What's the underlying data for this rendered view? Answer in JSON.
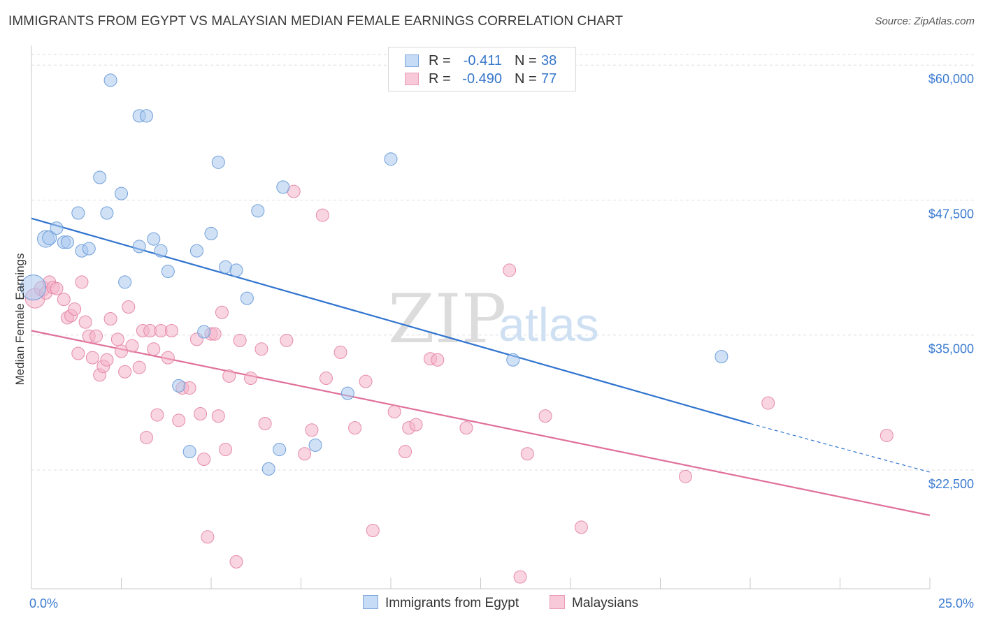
{
  "title": "IMMIGRANTS FROM EGYPT VS MALAYSIAN MEDIAN FEMALE EARNINGS CORRELATION CHART",
  "source": "Source: ZipAtlas.com",
  "watermark": {
    "zip": "ZIP",
    "atlas": "atlas"
  },
  "legend": {
    "rows": [
      {
        "r_label": "R =",
        "r_value": "-0.411",
        "n_label": "N =",
        "n_value": "38",
        "color": "#a9c8ef"
      },
      {
        "r_label": "R =",
        "r_value": "-0.490",
        "n_label": "N =",
        "n_value": "77",
        "color": "#f4b3c8"
      }
    ]
  },
  "bottom_legend": [
    {
      "label": "Immigrants from Egypt",
      "color": "#a9c8ef"
    },
    {
      "label": "Malaysians",
      "color": "#f4b3c8"
    }
  ],
  "chart_data": {
    "type": "scatter",
    "title": "IMMIGRANTS FROM EGYPT VS MALAYSIAN MEDIAN FEMALE EARNINGS CORRELATION CHART",
    "xlabel": "",
    "ylabel": "Median Female Earnings",
    "xlim": [
      0,
      25
    ],
    "ylim": [
      11500,
      61500
    ],
    "x_tick_labels": [
      "0.0%",
      "25.0%"
    ],
    "y_ticks": [
      22500,
      35000,
      47500,
      60000
    ],
    "y_tick_labels": [
      "$22,500",
      "$35,000",
      "$47,500",
      "$60,000"
    ],
    "grid": true,
    "legend_position": "top-center",
    "series": [
      {
        "name": "Immigrants from Egypt",
        "color": "#a9c8ef",
        "stroke": "#6f9fdb",
        "line_color": "#2f74cf",
        "trend": {
          "x0": 0,
          "y0": 45800,
          "x1": 20,
          "y1": 26800,
          "dash_to_x": 25,
          "dash_to_y": 22300
        },
        "points": [
          [
            0.05,
            39400,
            18
          ],
          [
            0.4,
            43900,
            12
          ],
          [
            0.5,
            44000,
            10
          ],
          [
            0.7,
            44900,
            9
          ],
          [
            0.9,
            43600,
            9
          ],
          [
            1.0,
            43600,
            9
          ],
          [
            1.3,
            46300,
            9
          ],
          [
            1.4,
            42800,
            9
          ],
          [
            1.6,
            43000,
            9
          ],
          [
            1.9,
            49600,
            9
          ],
          [
            2.1,
            46300,
            9
          ],
          [
            2.2,
            58600,
            9
          ],
          [
            2.5,
            48100,
            9
          ],
          [
            2.6,
            39900,
            9
          ],
          [
            3.0,
            43200,
            9
          ],
          [
            3.0,
            55300,
            9
          ],
          [
            3.2,
            55300,
            9
          ],
          [
            3.4,
            43900,
            9
          ],
          [
            3.6,
            42800,
            9
          ],
          [
            3.8,
            40900,
            9
          ],
          [
            4.1,
            30300,
            9
          ],
          [
            4.4,
            24200,
            9
          ],
          [
            4.6,
            42800,
            9
          ],
          [
            4.8,
            35300,
            9
          ],
          [
            5.0,
            44400,
            9
          ],
          [
            5.2,
            51000,
            9
          ],
          [
            5.4,
            41300,
            9
          ],
          [
            5.7,
            41000,
            9
          ],
          [
            6.0,
            38400,
            9
          ],
          [
            6.3,
            46500,
            9
          ],
          [
            6.6,
            22600,
            9
          ],
          [
            6.9,
            24400,
            9
          ],
          [
            7.0,
            48700,
            9
          ],
          [
            7.9,
            24800,
            9
          ],
          [
            8.8,
            29600,
            9
          ],
          [
            10.0,
            51300,
            9
          ],
          [
            13.4,
            32700,
            9
          ],
          [
            19.2,
            33000,
            9
          ]
        ]
      },
      {
        "name": "Malaysians",
        "color": "#f4b3c8",
        "stroke": "#e58aa9",
        "line_color": "#e0709a",
        "trend": {
          "x0": 0,
          "y0": 35400,
          "x1": 25,
          "y1": 18300
        },
        "points": [
          [
            0.1,
            38400,
            14
          ],
          [
            0.3,
            39300,
            11
          ],
          [
            0.4,
            38900,
            9
          ],
          [
            0.5,
            39900,
            9
          ],
          [
            0.6,
            39400,
            9
          ],
          [
            0.7,
            39300,
            9
          ],
          [
            0.9,
            38300,
            9
          ],
          [
            1.0,
            36600,
            9
          ],
          [
            1.1,
            36800,
            9
          ],
          [
            1.2,
            37400,
            9
          ],
          [
            1.3,
            33300,
            9
          ],
          [
            1.4,
            39900,
            9
          ],
          [
            1.5,
            36200,
            9
          ],
          [
            1.6,
            34900,
            9
          ],
          [
            1.7,
            32900,
            9
          ],
          [
            1.8,
            34900,
            9
          ],
          [
            1.9,
            31300,
            9
          ],
          [
            2.0,
            32100,
            9
          ],
          [
            2.1,
            32700,
            9
          ],
          [
            2.2,
            36500,
            9
          ],
          [
            2.4,
            34600,
            9
          ],
          [
            2.5,
            33500,
            9
          ],
          [
            2.6,
            31600,
            9
          ],
          [
            2.7,
            37600,
            9
          ],
          [
            2.8,
            34000,
            9
          ],
          [
            3.0,
            32000,
            9
          ],
          [
            3.1,
            35400,
            9
          ],
          [
            3.2,
            25500,
            9
          ],
          [
            3.3,
            35400,
            9
          ],
          [
            3.4,
            33700,
            9
          ],
          [
            3.5,
            27600,
            9
          ],
          [
            3.6,
            35400,
            9
          ],
          [
            3.8,
            32900,
            9
          ],
          [
            3.9,
            35400,
            9
          ],
          [
            4.1,
            27100,
            9
          ],
          [
            4.2,
            30100,
            9
          ],
          [
            4.4,
            30100,
            9
          ],
          [
            4.6,
            34600,
            9
          ],
          [
            4.7,
            27700,
            9
          ],
          [
            4.8,
            23500,
            9
          ],
          [
            4.9,
            16300,
            9
          ],
          [
            5.0,
            35100,
            9
          ],
          [
            5.1,
            35100,
            9
          ],
          [
            5.2,
            27500,
            9
          ],
          [
            5.3,
            37100,
            9
          ],
          [
            5.4,
            24400,
            9
          ],
          [
            5.5,
            31200,
            9
          ],
          [
            5.7,
            14000,
            9
          ],
          [
            5.8,
            34500,
            9
          ],
          [
            6.1,
            31000,
            9
          ],
          [
            6.4,
            33700,
            9
          ],
          [
            6.5,
            26800,
            9
          ],
          [
            7.1,
            34500,
            9
          ],
          [
            7.3,
            48300,
            9
          ],
          [
            7.6,
            24000,
            9
          ],
          [
            7.8,
            26200,
            9
          ],
          [
            8.1,
            46100,
            9
          ],
          [
            8.2,
            31000,
            9
          ],
          [
            8.6,
            33400,
            9
          ],
          [
            9.0,
            26400,
            9
          ],
          [
            9.3,
            30700,
            9
          ],
          [
            9.5,
            16900,
            9
          ],
          [
            10.1,
            27900,
            9
          ],
          [
            10.4,
            24200,
            9
          ],
          [
            10.5,
            26400,
            9
          ],
          [
            10.7,
            26700,
            9
          ],
          [
            11.1,
            32800,
            9
          ],
          [
            11.3,
            32700,
            9
          ],
          [
            12.1,
            26400,
            9
          ],
          [
            13.3,
            41000,
            9
          ],
          [
            13.6,
            12600,
            9
          ],
          [
            13.8,
            24000,
            9
          ],
          [
            14.3,
            27500,
            9
          ],
          [
            15.3,
            17200,
            9
          ],
          [
            18.2,
            21900,
            9
          ],
          [
            20.5,
            28700,
            9
          ],
          [
            23.8,
            25700,
            9
          ]
        ]
      }
    ]
  }
}
